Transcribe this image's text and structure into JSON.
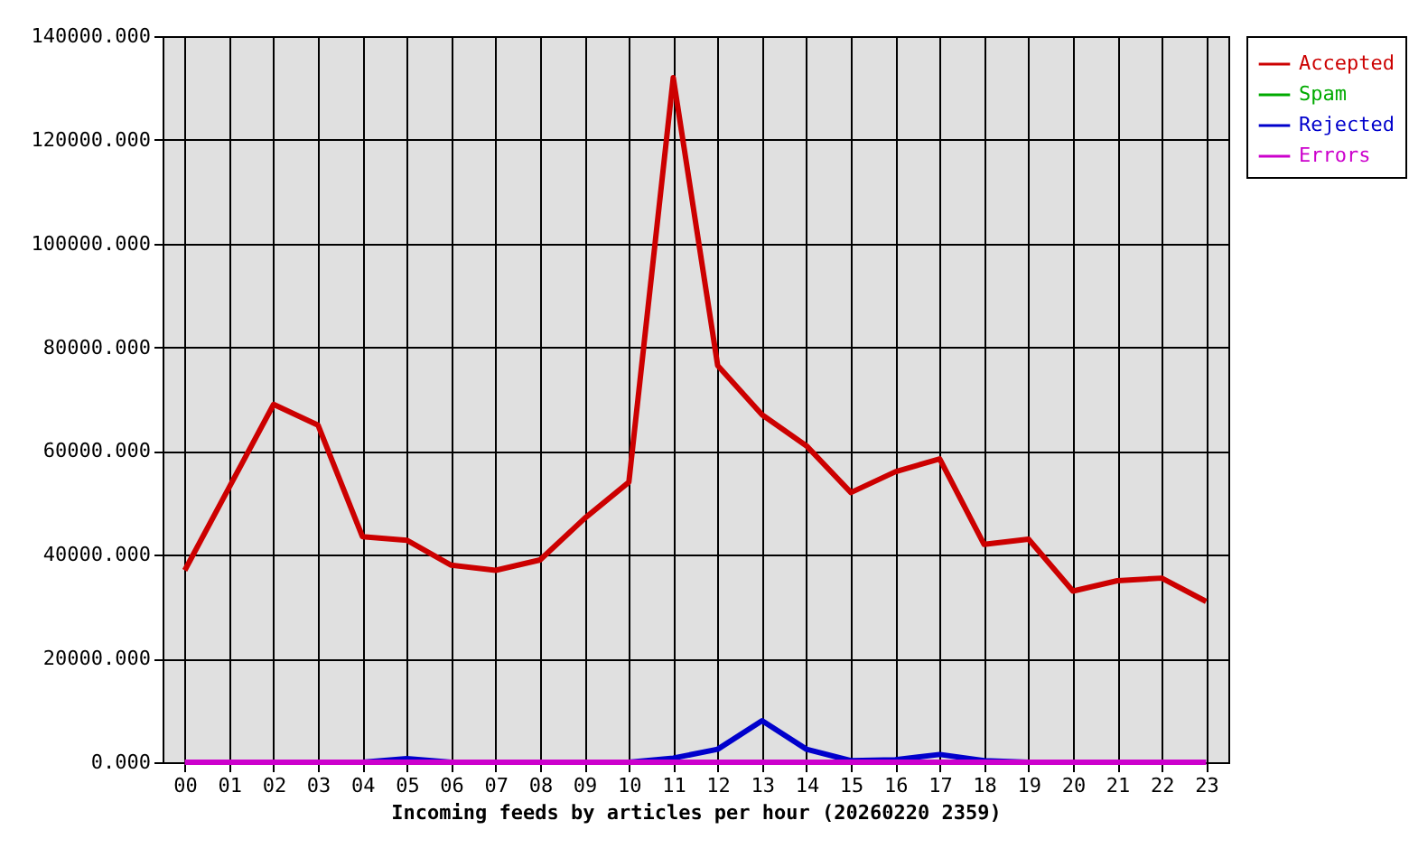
{
  "chart_data": {
    "type": "line",
    "xlabel": "Incoming feeds by articles per hour (20260220 2359)",
    "categories": [
      "00",
      "01",
      "02",
      "03",
      "04",
      "05",
      "06",
      "07",
      "08",
      "09",
      "10",
      "11",
      "12",
      "13",
      "14",
      "15",
      "16",
      "17",
      "18",
      "19",
      "20",
      "21",
      "22",
      "23"
    ],
    "series": [
      {
        "name": "Accepted",
        "color": "#cc0000",
        "values": [
          37000,
          53000,
          69000,
          65000,
          43500,
          42800,
          38000,
          37000,
          39000,
          47000,
          54000,
          132000,
          76500,
          67000,
          61000,
          52000,
          56000,
          58500,
          42000,
          43000,
          33000,
          35000,
          35500,
          31000
        ]
      },
      {
        "name": "Spam",
        "color": "#00aa00",
        "values": [
          null,
          null,
          null,
          null,
          null,
          null,
          null,
          null,
          null,
          null,
          null,
          null,
          null,
          null,
          null,
          null,
          null,
          null,
          null,
          null,
          null,
          null,
          null,
          null
        ]
      },
      {
        "name": "Rejected",
        "color": "#0000cc",
        "values": [
          null,
          null,
          null,
          0,
          0,
          700,
          0,
          0,
          0,
          0,
          0,
          800,
          2500,
          8000,
          2500,
          300,
          500,
          1500,
          300,
          0,
          0,
          null,
          null,
          null
        ]
      },
      {
        "name": "Errors",
        "color": "#cc00cc",
        "values": [
          0,
          0,
          0,
          0,
          0,
          0,
          0,
          0,
          0,
          0,
          0,
          0,
          0,
          0,
          0,
          0,
          0,
          0,
          0,
          0,
          0,
          0,
          0,
          0
        ]
      }
    ],
    "ylim": [
      0,
      140000
    ],
    "yticks": [
      {
        "value": 0,
        "label": "0.000"
      },
      {
        "value": 20000,
        "label": "20000.000"
      },
      {
        "value": 40000,
        "label": "40000.000"
      },
      {
        "value": 60000,
        "label": "60000.000"
      },
      {
        "value": 80000,
        "label": "80000.000"
      },
      {
        "value": 100000,
        "label": "100000.000"
      },
      {
        "value": 120000,
        "label": "120000.000"
      },
      {
        "value": 140000,
        "label": "140000.000"
      }
    ],
    "grid": true,
    "legend": "top right",
    "marker": "none",
    "line_style": "solid"
  }
}
